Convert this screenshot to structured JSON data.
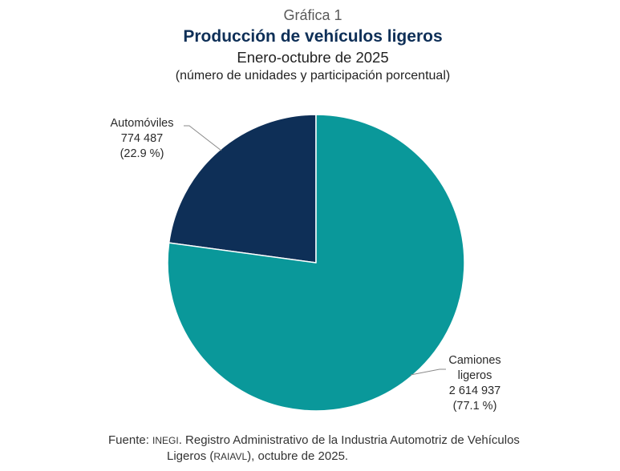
{
  "header": {
    "label": "Gráfica 1",
    "title": "Producción de vehículos ligeros",
    "subtitle": "Enero-octubre de 2025",
    "note": "(número de unidades y participación porcentual)"
  },
  "chart_data": {
    "type": "pie",
    "title": "Producción de vehículos ligeros",
    "subtitle": "Enero-octubre de 2025",
    "unit": "número de unidades y participación porcentual",
    "slices": [
      {
        "name": "Automóviles",
        "label_lines": [
          "Automóviles"
        ],
        "value": 774487,
        "value_text": "774 487",
        "share": 22.9,
        "share_text": "(22.9 %)",
        "color": "#0e2f57"
      },
      {
        "name": "Camiones ligeros",
        "label_lines": [
          "Camiones",
          "ligeros"
        ],
        "value": 2614937,
        "value_text": "2 614 937",
        "share": 77.1,
        "share_text": "(77.1 %)",
        "color": "#0a989a"
      }
    ]
  },
  "source": {
    "prefix": "Fuente: ",
    "org": "INEGI",
    "line1_rest": ". Registro Administrativo de la Industria Automotriz de Vehículos",
    "line2_start": "Ligeros (",
    "acronym": "RAIAVL",
    "line2_end": "), octubre de 2025."
  }
}
